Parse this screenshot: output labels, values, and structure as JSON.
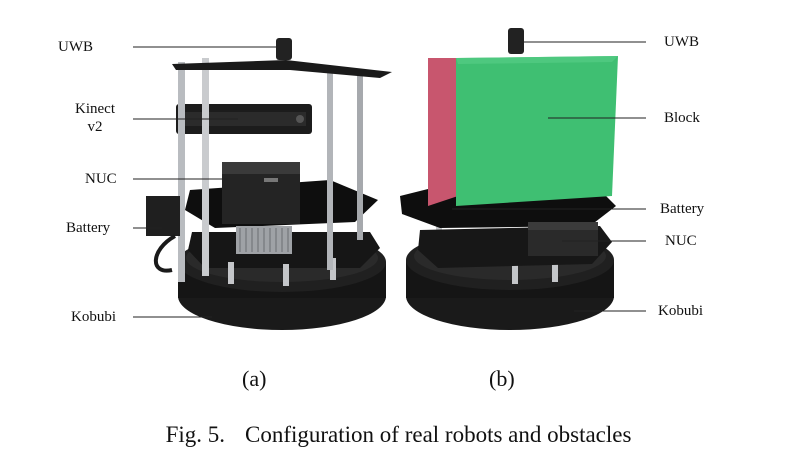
{
  "panel_a": {
    "labels": {
      "uwb": "UWB",
      "kinect_line1": "Kinect",
      "kinect_line2": "v2",
      "nuc": "NUC",
      "battery": "Battery",
      "kobubi": "Kobubi"
    },
    "sublabel": "(a)"
  },
  "panel_b": {
    "labels": {
      "uwb": "UWB",
      "block": "Block",
      "battery": "Battery",
      "nuc": "NUC",
      "kobubi": "Kobubi"
    },
    "sublabel": "(b)"
  },
  "caption": {
    "prefix": "Fig. 5.",
    "text": "Configuration of real robots and obstacles"
  },
  "colors": {
    "block_green": "#3fbf72",
    "block_pink": "#c8566e",
    "robot_black": "#141414",
    "pole_silver": "#b9bcc0"
  }
}
